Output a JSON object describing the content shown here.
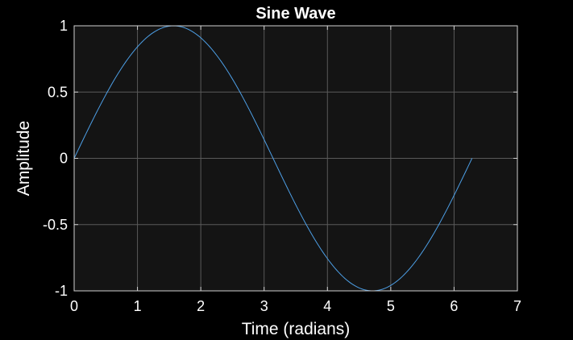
{
  "chart_data": {
    "type": "line",
    "title": "Sine Wave",
    "xlabel": "Time (radians)",
    "ylabel": "Amplitude",
    "xlim": [
      0,
      7
    ],
    "ylim": [
      -1,
      1
    ],
    "xticks": [
      0,
      1,
      2,
      3,
      4,
      5,
      6,
      7
    ],
    "yticks": [
      -1,
      -0.5,
      0,
      0.5,
      1
    ],
    "xtick_labels": [
      "0",
      "1",
      "2",
      "3",
      "4",
      "5",
      "6",
      "7"
    ],
    "ytick_labels": [
      "-1",
      "-0.5",
      "0",
      "0.5",
      "1"
    ],
    "grid": true,
    "series": [
      {
        "function": "sin",
        "x_start": 0,
        "x_end": 6.2832,
        "samples": 200,
        "color": "#4d9fe6"
      }
    ]
  },
  "colors": {
    "figure_background": "#000000",
    "axes_background": "#141414",
    "axes_edge": "#cfcfcf",
    "grid": "#5a5a5a",
    "text": "#ffffff"
  }
}
